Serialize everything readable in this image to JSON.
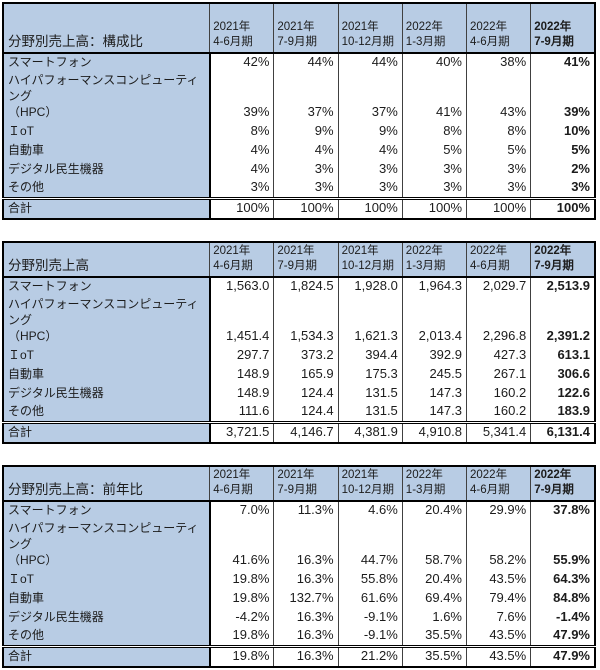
{
  "colors": {
    "header_bg": "#b8cce4",
    "border_dark": "#000000",
    "border_thin": "#404040",
    "cell_bg": "#ffffff",
    "text": "#1c1c1c"
  },
  "chart_data": [
    {
      "type": "table",
      "title": "分野別売上高：構成比",
      "columns": [
        {
          "year": "2021年",
          "period": "4-6月期"
        },
        {
          "year": "2021年",
          "period": "7-9月期"
        },
        {
          "year": "2021年",
          "period": "10-12月期"
        },
        {
          "year": "2022年",
          "period": "1-3月期"
        },
        {
          "year": "2022年",
          "period": "4-6月期"
        },
        {
          "year": "2022年",
          "period": "7-9月期"
        }
      ],
      "rows": [
        {
          "label": "スマートフォン",
          "values": [
            "42%",
            "44%",
            "44%",
            "40%",
            "38%",
            "41%"
          ]
        },
        {
          "label": "ハイパフォーマンスコンピューティング\n（HPC）",
          "values": [
            "39%",
            "37%",
            "37%",
            "41%",
            "43%",
            "39%"
          ]
        },
        {
          "label": "ＩoT",
          "values": [
            "8%",
            "9%",
            "9%",
            "8%",
            "8%",
            "10%"
          ]
        },
        {
          "label": "自動車",
          "values": [
            "4%",
            "4%",
            "4%",
            "5%",
            "5%",
            "5%"
          ]
        },
        {
          "label": "デジタル民生機器",
          "values": [
            "4%",
            "3%",
            "3%",
            "3%",
            "3%",
            "2%"
          ]
        },
        {
          "label": "その他",
          "values": [
            "3%",
            "3%",
            "3%",
            "3%",
            "3%",
            "3%"
          ]
        }
      ],
      "total": {
        "label": "合計",
        "values": [
          "100%",
          "100%",
          "100%",
          "100%",
          "100%",
          "100%"
        ]
      }
    },
    {
      "type": "table",
      "title": "分野別売上高",
      "columns": [
        {
          "year": "2021年",
          "period": "4-6月期"
        },
        {
          "year": "2021年",
          "period": "7-9月期"
        },
        {
          "year": "2021年",
          "period": "10-12月期"
        },
        {
          "year": "2022年",
          "period": "1-3月期"
        },
        {
          "year": "2022年",
          "period": "4-6月期"
        },
        {
          "year": "2022年",
          "period": "7-9月期"
        }
      ],
      "rows": [
        {
          "label": "スマートフォン",
          "values": [
            "1,563.0",
            "1,824.5",
            "1,928.0",
            "1,964.3",
            "2,029.7",
            "2,513.9"
          ]
        },
        {
          "label": "ハイパフォーマンスコンピューティング\n（HPC）",
          "values": [
            "1,451.4",
            "1,534.3",
            "1,621.3",
            "2,013.4",
            "2,296.8",
            "2,391.2"
          ]
        },
        {
          "label": "ＩoT",
          "values": [
            "297.7",
            "373.2",
            "394.4",
            "392.9",
            "427.3",
            "613.1"
          ]
        },
        {
          "label": "自動車",
          "values": [
            "148.9",
            "165.9",
            "175.3",
            "245.5",
            "267.1",
            "306.6"
          ]
        },
        {
          "label": "デジタル民生機器",
          "values": [
            "148.9",
            "124.4",
            "131.5",
            "147.3",
            "160.2",
            "122.6"
          ]
        },
        {
          "label": "その他",
          "values": [
            "111.6",
            "124.4",
            "131.5",
            "147.3",
            "160.2",
            "183.9"
          ]
        }
      ],
      "total": {
        "label": "合計",
        "values": [
          "3,721.5",
          "4,146.7",
          "4,381.9",
          "4,910.8",
          "5,341.4",
          "6,131.4"
        ]
      }
    },
    {
      "type": "table",
      "title": "分野別売上高：前年比",
      "columns": [
        {
          "year": "2021年",
          "period": "4-6月期"
        },
        {
          "year": "2021年",
          "period": "7-9月期"
        },
        {
          "year": "2021年",
          "period": "10-12月期"
        },
        {
          "year": "2022年",
          "period": "1-3月期"
        },
        {
          "year": "2022年",
          "period": "4-6月期"
        },
        {
          "year": "2022年",
          "period": "7-9月期"
        }
      ],
      "rows": [
        {
          "label": "スマートフォン",
          "values": [
            "7.0%",
            "11.3%",
            "4.6%",
            "20.4%",
            "29.9%",
            "37.8%"
          ]
        },
        {
          "label": "ハイパフォーマンスコンピューティング\n（HPC）",
          "values": [
            "41.6%",
            "16.3%",
            "44.7%",
            "58.7%",
            "58.2%",
            "55.9%"
          ]
        },
        {
          "label": "ＩoT",
          "values": [
            "19.8%",
            "16.3%",
            "55.8%",
            "20.4%",
            "43.5%",
            "64.3%"
          ]
        },
        {
          "label": "自動車",
          "values": [
            "19.8%",
            "132.7%",
            "61.6%",
            "69.4%",
            "79.4%",
            "84.8%"
          ]
        },
        {
          "label": "デジタル民生機器",
          "values": [
            "-4.2%",
            "16.3%",
            "-9.1%",
            "1.6%",
            "7.6%",
            "-1.4%"
          ]
        },
        {
          "label": "その他",
          "values": [
            "19.8%",
            "16.3%",
            "-9.1%",
            "35.5%",
            "43.5%",
            "47.9%"
          ]
        }
      ],
      "total": {
        "label": "合計",
        "values": [
          "19.8%",
          "16.3%",
          "21.2%",
          "35.5%",
          "43.5%",
          "47.9%"
        ]
      }
    }
  ]
}
